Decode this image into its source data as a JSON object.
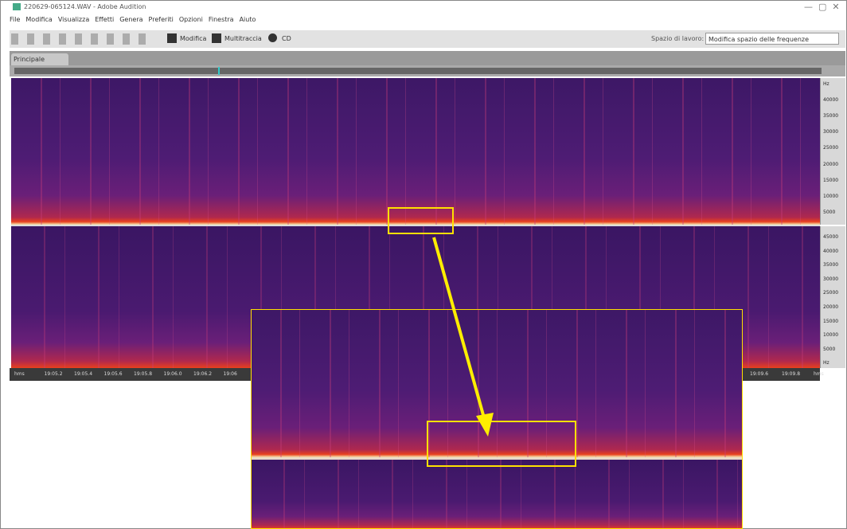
{
  "window": {
    "title": "220629-065124.WAV - Adobe Audition"
  },
  "menu": [
    "File",
    "Modifica",
    "Visualizza",
    "Effetti",
    "Genera",
    "Preferiti",
    "Opzioni",
    "Finestra",
    "Aiuto"
  ],
  "toolbar": {
    "modes": [
      "Modifica",
      "Multitraccia",
      "CD"
    ],
    "workspace_label": "Spazio di lavoro:",
    "workspace_value": "Modifica spazio delle frequenze"
  },
  "tab": "Principale",
  "frequency_ruler": {
    "top_channel": [
      "Hz",
      "40000",
      "35000",
      "30000",
      "25000",
      "20000",
      "15000",
      "10000",
      "5000"
    ],
    "bottom_channel": [
      "45000",
      "40000",
      "35000",
      "30000",
      "25000",
      "20000",
      "15000",
      "10000",
      "5000",
      "Hz"
    ]
  },
  "time_ruler": {
    "left": [
      "hms",
      "19:05.2",
      "19:05.4",
      "19:05.6",
      "19:05.8",
      "19:06.0",
      "19:06.2",
      "19:06"
    ],
    "right": [
      "19:09.6",
      "19:09.8",
      "hms"
    ]
  }
}
